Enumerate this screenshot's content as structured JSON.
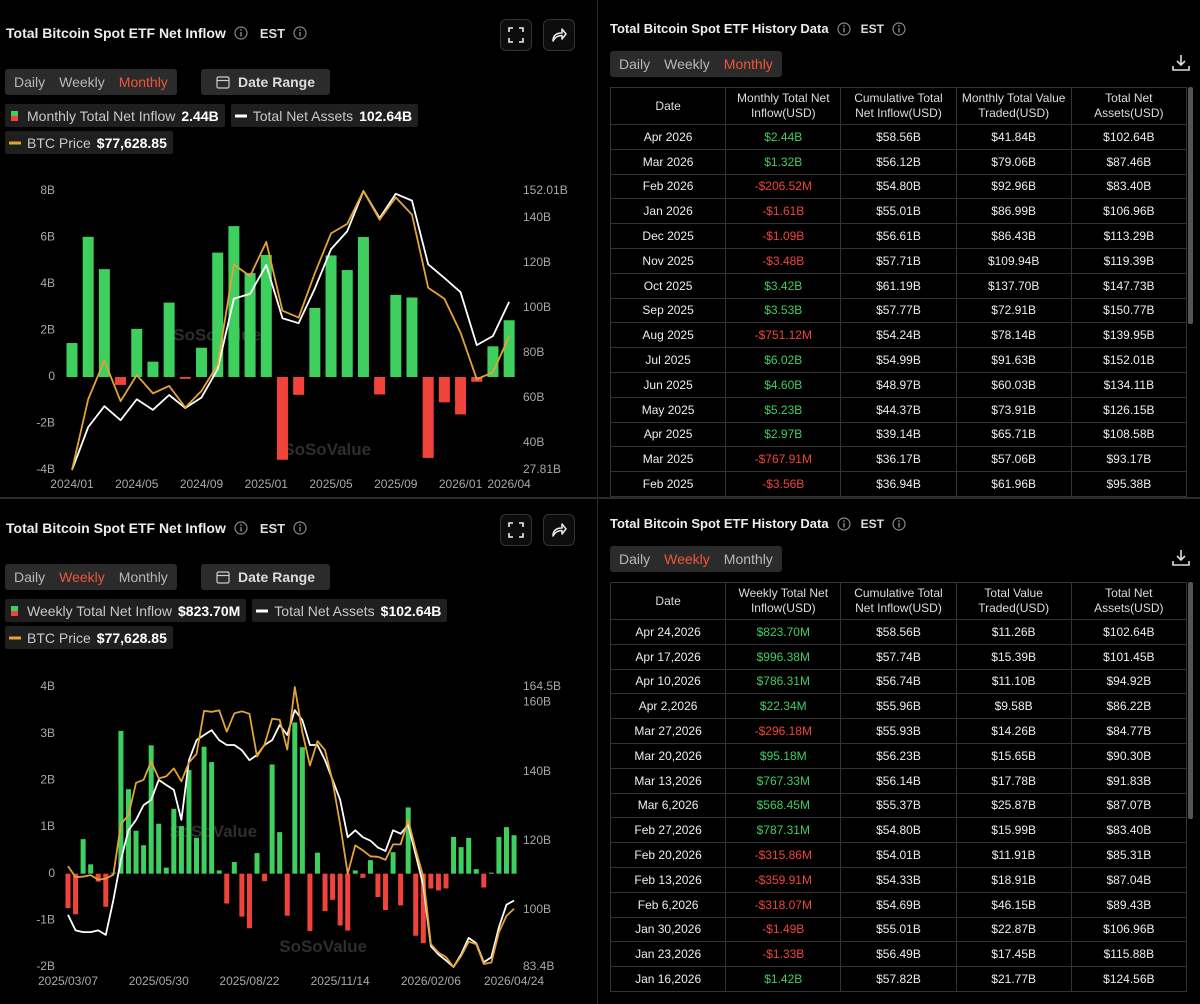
{
  "chart_data": [
    {
      "type": "bar",
      "title": "Total Bitcoin Spot ETF Net Inflow",
      "timezone": "EST",
      "tabs": [
        "Daily",
        "Weekly",
        "Monthly"
      ],
      "active_tab": 2,
      "date_range": "Date Range",
      "watermark": "SoSoValue",
      "categories": [
        "2024/01",
        null,
        null,
        null,
        "2024/05",
        null,
        null,
        null,
        "2024/09",
        null,
        null,
        null,
        "2025/01",
        null,
        null,
        null,
        "2025/05",
        null,
        null,
        null,
        "2025/09",
        null,
        null,
        null,
        "2026/01",
        null,
        null,
        "2026/04"
      ],
      "series": [
        {
          "name": "Monthly Total Net Inflow",
          "legend_value": "2.44B",
          "color": "#3ecf5e",
          "negative_color": "#f0443a",
          "values": [
            1.46,
            6.03,
            4.64,
            -0.34,
            2.07,
            0.66,
            3.2,
            -0.08,
            1.26,
            5.35,
            6.49,
            4.47,
            5.25,
            -3.56,
            -0.76791,
            2.97,
            5.23,
            4.6,
            6.02,
            -0.75112,
            3.53,
            3.42,
            -3.48,
            -1.09,
            -1.61,
            -0.20652,
            1.32,
            2.44
          ]
        },
        {
          "name": "Total Net Assets",
          "legend_value": "102.64B",
          "type": "line",
          "axis": "y2",
          "color": "#ffffff",
          "values": [
            27.81,
            46.9,
            56.2,
            50.0,
            59.3,
            54.6,
            61.2,
            55.4,
            60.1,
            72.8,
            104.1,
            106.2,
            119.1,
            95.38,
            93.17,
            108.58,
            126.15,
            134.11,
            152.01,
            139.95,
            150.77,
            147.73,
            119.39,
            113.29,
            106.96,
            83.4,
            87.46,
            102.64
          ]
        },
        {
          "name": "BTC Price",
          "legend_value": "$77,628.85",
          "type": "line",
          "axis": "none",
          "color": "#e3a336",
          "values": [
            42580,
            61130,
            71290,
            60640,
            67490,
            62680,
            64620,
            58970,
            63330,
            70220,
            96450,
            93430,
            102410,
            84370,
            82550,
            94210,
            104640,
            107140,
            115760,
            108240,
            114060,
            109560,
            90390,
            87510,
            78620,
            66400,
            68220,
            77628.85
          ]
        }
      ],
      "ylim": [
        -4,
        8
      ],
      "yticks": [
        {
          "value": 8,
          "label": "8B"
        },
        {
          "value": 6,
          "label": "6B"
        },
        {
          "value": 4,
          "label": "4B"
        },
        {
          "value": 2,
          "label": "2B"
        },
        0,
        {
          "value": -2,
          "label": "-2B"
        },
        {
          "value": -4,
          "label": "-4B"
        }
      ],
      "y2lim": [
        27.81,
        152.01
      ],
      "y2ticks": [
        {
          "value": 152.01,
          "label": "152.01B"
        },
        {
          "value": 140,
          "label": "140B"
        },
        {
          "value": 120,
          "label": "120B"
        },
        {
          "value": 100,
          "label": "100B"
        },
        {
          "value": 80,
          "label": "80B"
        },
        {
          "value": 60,
          "label": "60B"
        },
        {
          "value": 40,
          "label": "40B"
        },
        {
          "value": 27.81,
          "label": "27.81B"
        }
      ],
      "grid": false
    },
    {
      "type": "bar",
      "title": "Total Bitcoin Spot ETF Net Inflow",
      "timezone": "EST",
      "tabs": [
        "Daily",
        "Weekly",
        "Monthly"
      ],
      "active_tab": 1,
      "date_range": "Date Range",
      "watermark": "SoSoValue",
      "categories": [
        "2025/03/07",
        null,
        null,
        null,
        null,
        null,
        null,
        null,
        null,
        null,
        null,
        null,
        "2025/05/30",
        null,
        null,
        null,
        null,
        null,
        null,
        null,
        null,
        null,
        null,
        null,
        "2025/08/22",
        null,
        null,
        null,
        null,
        null,
        null,
        null,
        null,
        null,
        null,
        null,
        "2025/11/14",
        null,
        null,
        null,
        null,
        null,
        null,
        null,
        null,
        null,
        null,
        null,
        "2026/02/06",
        null,
        null,
        null,
        null,
        null,
        null,
        null,
        null,
        null,
        null,
        "2026/04/24"
      ],
      "series": [
        {
          "name": "Weekly Total Net Inflow",
          "legend_value": "$823.70M",
          "color": "#3ecf5e",
          "negative_color": "#f0443a",
          "values": [
            -0.74,
            -0.87,
            0.74,
            0.2,
            -0.17,
            -0.71,
            0.02,
            3.06,
            1.81,
            0.92,
            0.61,
            2.75,
            1.07,
            0.13,
            1.39,
            1.02,
            2.22,
            0.77,
            2.72,
            2.39,
            0.07,
            -0.64,
            0.25,
            -0.92,
            -1.17,
            0.44,
            -0.16,
            2.34,
            0.89,
            -0.9,
            3.24,
            2.71,
            -1.23,
            0.45,
            -0.8,
            -0.56,
            -1.11,
            -1.22,
            0.07,
            -0.09,
            0.29,
            -0.5,
            -0.78,
            0.46,
            -0.68,
            1.42,
            -1.33,
            -1.49,
            -0.31807,
            -0.35991,
            -0.31586,
            0.78731,
            0.56845,
            0.76733,
            0.09518,
            -0.29618,
            0.02234,
            0.78631,
            0.99638,
            0.8237
          ]
        },
        {
          "name": "Total Net Assets",
          "legend_value": "$102.64B",
          "type": "line",
          "axis": "y2",
          "color": "#ffffff",
          "values": [
            98.5,
            94,
            93.5,
            93.5,
            94,
            92.7,
            102.8,
            114.4,
            123,
            126,
            130.3,
            131.8,
            137.6,
            136.1,
            134.7,
            126,
            143.3,
            149.1,
            150.6,
            152,
            149.1,
            147.7,
            147.7,
            146.2,
            143.3,
            144.8,
            147.7,
            149.1,
            153.5,
            150.6,
            157.8,
            154.9,
            147.7,
            147.7,
            143.3,
            137.6,
            131.8,
            121,
            123,
            121,
            120,
            118,
            117,
            123,
            122,
            124.56,
            115.88,
            106.96,
            89.43,
            87.04,
            85.31,
            83.4,
            87.07,
            91.83,
            90.3,
            84.77,
            86.22,
            94.92,
            101.45,
            102.64
          ]
        },
        {
          "name": "BTC Price",
          "legend_value": "$77,628.85",
          "type": "line",
          "axis": "none",
          "color": "#e3a336",
          "values": [
            86200,
            84000,
            84100,
            84400,
            83500,
            83700,
            84500,
            94700,
            96500,
            103000,
            103600,
            107300,
            103900,
            104300,
            105900,
            103300,
            107100,
            108800,
            117500,
            117300,
            117600,
            113300,
            117000,
            117400,
            116900,
            108300,
            110700,
            115900,
            115700,
            109700,
            122300,
            113200,
            106500,
            111400,
            109600,
            103300,
            94600,
            84700,
            90400,
            89400,
            88200,
            88100,
            87500,
            90600,
            90600,
            95500,
            89500,
            84100,
            70500,
            68800,
            67900,
            65900,
            68100,
            71000,
            70500,
            66500,
            66800,
            72900,
            76200,
            77628.85
          ]
        }
      ],
      "ylim": [
        -2,
        4
      ],
      "yticks": [
        {
          "value": 4,
          "label": "4B"
        },
        {
          "value": 3,
          "label": "3B"
        },
        {
          "value": 2,
          "label": "2B"
        },
        {
          "value": 1,
          "label": "1B"
        },
        0,
        {
          "value": -1,
          "label": "-1B"
        },
        {
          "value": -2,
          "label": "-2B"
        }
      ],
      "y2lim": [
        83.4,
        164.5
      ],
      "y2ticks": [
        {
          "value": 164.5,
          "label": "164.5B"
        },
        {
          "value": 160,
          "label": "160B"
        },
        {
          "value": 140,
          "label": "140B"
        },
        {
          "value": 120,
          "label": "120B"
        },
        {
          "value": 100,
          "label": "100B"
        },
        {
          "value": 83.4,
          "label": "83.4B"
        }
      ],
      "grid": false
    }
  ],
  "tables": [
    {
      "title": "Total Bitcoin Spot ETF History Data",
      "timezone": "EST",
      "tabs": [
        "Daily",
        "Weekly",
        "Monthly"
      ],
      "active_tab": 2,
      "columns": [
        "Date",
        "Monthly Total Net Inflow(USD)",
        "Cumulative Total Net Inflow(USD)",
        "Monthly Total Value Traded(USD)",
        "Total Net Assets(USD)"
      ],
      "rows": [
        [
          "Apr 2026",
          "$2.44B",
          "$58.56B",
          "$41.84B",
          "$102.64B"
        ],
        [
          "Mar 2026",
          "$1.32B",
          "$56.12B",
          "$79.06B",
          "$87.46B"
        ],
        [
          "Feb 2026",
          "-$206.52M",
          "$54.80B",
          "$92.96B",
          "$83.40B"
        ],
        [
          "Jan 2026",
          "-$1.61B",
          "$55.01B",
          "$86.99B",
          "$106.96B"
        ],
        [
          "Dec 2025",
          "-$1.09B",
          "$56.61B",
          "$86.43B",
          "$113.29B"
        ],
        [
          "Nov 2025",
          "-$3.48B",
          "$57.71B",
          "$109.94B",
          "$119.39B"
        ],
        [
          "Oct 2025",
          "$3.42B",
          "$61.19B",
          "$137.70B",
          "$147.73B"
        ],
        [
          "Sep 2025",
          "$3.53B",
          "$57.77B",
          "$72.91B",
          "$150.77B"
        ],
        [
          "Aug 2025",
          "-$751.12M",
          "$54.24B",
          "$78.14B",
          "$139.95B"
        ],
        [
          "Jul 2025",
          "$6.02B",
          "$54.99B",
          "$91.63B",
          "$152.01B"
        ],
        [
          "Jun 2025",
          "$4.60B",
          "$48.97B",
          "$60.03B",
          "$134.11B"
        ],
        [
          "May 2025",
          "$5.23B",
          "$44.37B",
          "$73.91B",
          "$126.15B"
        ],
        [
          "Apr 2025",
          "$2.97B",
          "$39.14B",
          "$65.71B",
          "$108.58B"
        ],
        [
          "Mar 2025",
          "-$767.91M",
          "$36.17B",
          "$57.06B",
          "$93.17B"
        ],
        [
          "Feb 2025",
          "-$3.56B",
          "$36.94B",
          "$61.96B",
          "$95.38B"
        ]
      ]
    },
    {
      "title": "Total Bitcoin Spot ETF History Data",
      "timezone": "EST",
      "tabs": [
        "Daily",
        "Weekly",
        "Monthly"
      ],
      "active_tab": 1,
      "columns": [
        "Date",
        "Weekly Total Net Inflow(USD)",
        "Cumulative Total Net Inflow(USD)",
        "Total Value Traded(USD)",
        "Total Net Assets(USD)"
      ],
      "rows": [
        [
          "Apr 24,2026",
          "$823.70M",
          "$58.56B",
          "$11.26B",
          "$102.64B"
        ],
        [
          "Apr 17,2026",
          "$996.38M",
          "$57.74B",
          "$15.39B",
          "$101.45B"
        ],
        [
          "Apr 10,2026",
          "$786.31M",
          "$56.74B",
          "$11.10B",
          "$94.92B"
        ],
        [
          "Apr 2,2026",
          "$22.34M",
          "$55.96B",
          "$9.58B",
          "$86.22B"
        ],
        [
          "Mar 27,2026",
          "-$296.18M",
          "$55.93B",
          "$14.26B",
          "$84.77B"
        ],
        [
          "Mar 20,2026",
          "$95.18M",
          "$56.23B",
          "$15.65B",
          "$90.30B"
        ],
        [
          "Mar 13,2026",
          "$767.33M",
          "$56.14B",
          "$17.78B",
          "$91.83B"
        ],
        [
          "Mar 6,2026",
          "$568.45M",
          "$55.37B",
          "$25.87B",
          "$87.07B"
        ],
        [
          "Feb 27,2026",
          "$787.31M",
          "$54.80B",
          "$15.99B",
          "$83.40B"
        ],
        [
          "Feb 20,2026",
          "-$315.86M",
          "$54.01B",
          "$11.91B",
          "$85.31B"
        ],
        [
          "Feb 13,2026",
          "-$359.91M",
          "$54.33B",
          "$18.91B",
          "$87.04B"
        ],
        [
          "Feb 6,2026",
          "-$318.07M",
          "$54.69B",
          "$46.15B",
          "$89.43B"
        ],
        [
          "Jan 30,2026",
          "-$1.49B",
          "$55.01B",
          "$22.87B",
          "$106.96B"
        ],
        [
          "Jan 23,2026",
          "-$1.33B",
          "$56.49B",
          "$17.45B",
          "$115.88B"
        ],
        [
          "Jan 16,2026",
          "$1.42B",
          "$57.82B",
          "$21.77B",
          "$124.56B"
        ]
      ]
    }
  ]
}
